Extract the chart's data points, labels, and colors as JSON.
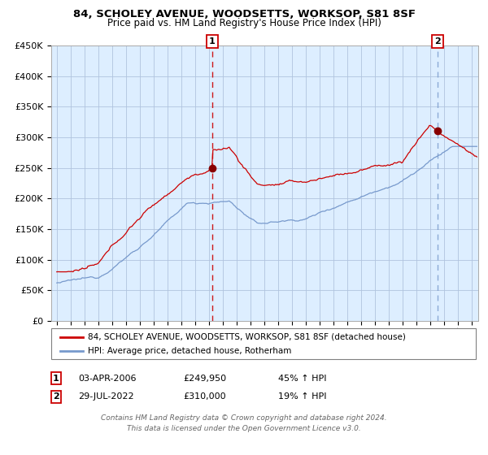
{
  "title_line1": "84, SCHOLEY AVENUE, WOODSETTS, WORKSOP, S81 8SF",
  "title_line2": "Price paid vs. HM Land Registry's House Price Index (HPI)",
  "legend_label_red": "84, SCHOLEY AVENUE, WOODSETTS, WORKSOP, S81 8SF (detached house)",
  "legend_label_blue": "HPI: Average price, detached house, Rotherham",
  "annotation1_label": "1",
  "annotation1_date": "03-APR-2006",
  "annotation1_price": "£249,950",
  "annotation1_hpi": "45% ↑ HPI",
  "annotation2_label": "2",
  "annotation2_date": "29-JUL-2022",
  "annotation2_price": "£310,000",
  "annotation2_hpi": "19% ↑ HPI",
  "footer_line1": "Contains HM Land Registry data © Crown copyright and database right 2024.",
  "footer_line2": "This data is licensed under the Open Government Licence v3.0.",
  "ylim": [
    0,
    450000
  ],
  "yticks": [
    0,
    50000,
    100000,
    150000,
    200000,
    250000,
    300000,
    350000,
    400000,
    450000
  ],
  "red_color": "#cc0000",
  "blue_color": "#7799cc",
  "bg_color": "#ddeeff",
  "grid_color": "#b0c4de",
  "vline1_color": "#cc0000",
  "vline2_color": "#7799cc",
  "marker_color": "#880000",
  "box_color": "#cc0000",
  "purchase1_x": 2006.25,
  "purchase1_y": 249950,
  "purchase2_x": 2022.58,
  "purchase2_y": 310000,
  "xlim_left": 1994.6,
  "xlim_right": 2025.5
}
